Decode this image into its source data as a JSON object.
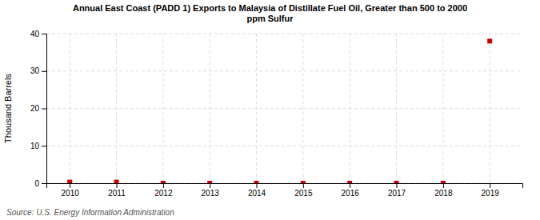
{
  "chart_data": {
    "type": "scatter",
    "title": "Annual East Coast (PADD 1) Exports to Malaysia of Distillate Fuel Oil, Greater than 500 to 2000\nppm Sulfur",
    "ylabel": "Thousand Barrels",
    "annotations": [
      "Source: U.S. Energy Information Administration"
    ],
    "x": [
      2010,
      2011,
      2012,
      2013,
      2014,
      2015,
      2016,
      2017,
      2018,
      2019
    ],
    "values": [
      0.3,
      0.3,
      0,
      0,
      0,
      0,
      0,
      0,
      0,
      38
    ],
    "color": "#cc0000",
    "marker": "square",
    "xlim": [
      2009.5,
      2019.7
    ],
    "xticks": [
      2010,
      2011,
      2012,
      2013,
      2014,
      2015,
      2016,
      2017,
      2018,
      2019
    ],
    "ylim": [
      0,
      40
    ],
    "yticks": [
      0,
      10,
      20,
      30,
      40
    ],
    "grid": true
  }
}
